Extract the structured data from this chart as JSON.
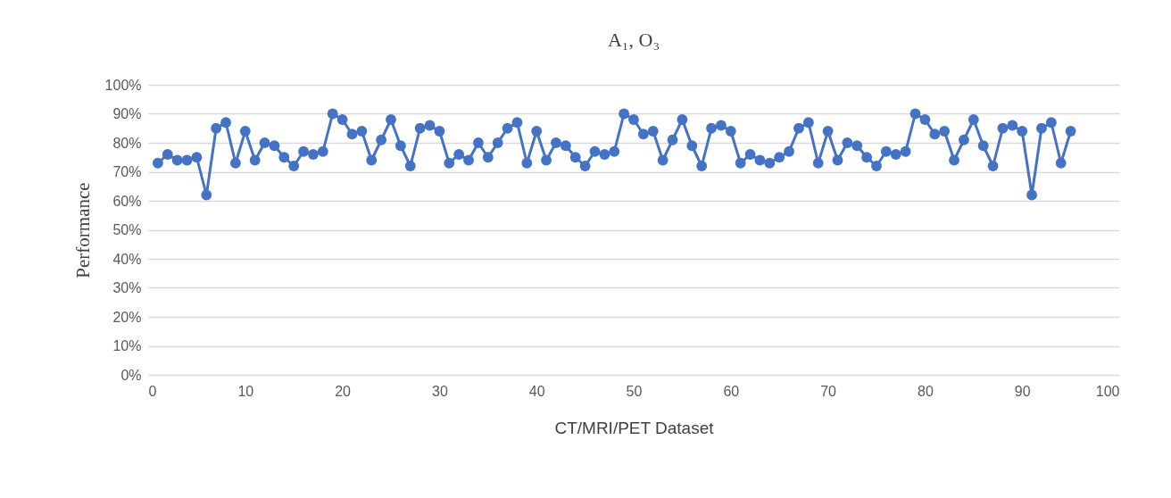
{
  "chart_data": {
    "type": "line",
    "title": "A₁, O₃",
    "xlabel": "CT/MRI/PET Dataset",
    "ylabel": "Performance",
    "x": [
      1,
      2,
      3,
      4,
      5,
      6,
      7,
      8,
      9,
      10,
      11,
      12,
      13,
      14,
      15,
      16,
      17,
      18,
      19,
      20,
      21,
      22,
      23,
      24,
      25,
      26,
      27,
      28,
      29,
      30,
      31,
      32,
      33,
      34,
      35,
      36,
      37,
      38,
      39,
      40,
      41,
      42,
      43,
      44,
      45,
      46,
      47,
      48,
      49,
      50,
      51,
      52,
      53,
      54,
      55,
      56,
      57,
      58,
      59,
      60,
      61,
      62,
      63,
      64,
      65,
      66,
      67,
      68,
      69,
      70,
      71,
      72,
      73,
      74,
      75,
      76,
      77,
      78,
      79,
      80,
      81,
      82,
      83,
      84,
      85,
      86,
      87,
      88,
      89,
      90,
      91,
      92,
      93,
      94,
      95
    ],
    "series": [
      {
        "color": "#4472c4",
        "values": [
          73,
          76,
          74,
          74,
          75,
          62,
          85,
          87,
          73,
          84,
          74,
          80,
          79,
          75,
          72,
          77,
          76,
          77,
          90,
          88,
          83,
          84,
          74,
          81,
          88,
          79,
          72,
          85,
          86,
          84,
          73,
          76,
          74,
          80,
          75,
          80,
          85,
          87,
          73,
          84,
          74,
          80,
          79,
          75,
          72,
          77,
          76,
          77,
          90,
          88,
          83,
          84,
          74,
          81,
          88,
          79,
          72,
          85,
          86,
          84,
          73,
          76,
          74,
          73,
          75,
          77,
          85,
          87,
          73,
          84,
          74,
          80,
          79,
          75,
          72,
          77,
          76,
          77,
          90,
          88,
          83,
          84,
          74,
          81,
          88,
          79,
          72,
          85,
          86,
          84,
          62,
          85,
          87,
          73,
          84
        ]
      }
    ],
    "xlim": [
      0,
      100
    ],
    "xticks": [
      0,
      10,
      20,
      30,
      40,
      50,
      60,
      70,
      80,
      90,
      100
    ],
    "ylim": [
      0,
      100
    ],
    "yticks": [
      {
        "value": 0,
        "label": "0%"
      },
      {
        "value": 10,
        "label": "10%"
      },
      {
        "value": 20,
        "label": "20%"
      },
      {
        "value": 30,
        "label": "30%"
      },
      {
        "value": 40,
        "label": "40%"
      },
      {
        "value": 50,
        "label": "50%"
      },
      {
        "value": 60,
        "label": "60%"
      },
      {
        "value": 70,
        "label": "70%"
      },
      {
        "value": 80,
        "label": "80%"
      },
      {
        "value": 90,
        "label": "90%"
      },
      {
        "value": 100,
        "label": "100%"
      }
    ],
    "grid": "y",
    "marker": "circle",
    "line_style": "solid"
  }
}
